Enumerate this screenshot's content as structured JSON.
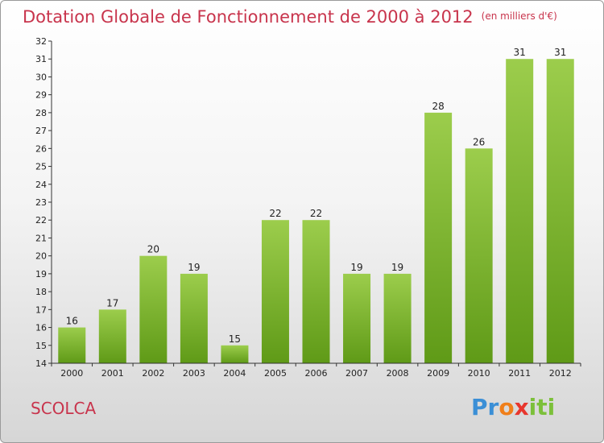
{
  "header": {
    "title": "Dotation Globale de Fonctionnement de 2000 à 2012",
    "unit": "(en milliers d'€)"
  },
  "footer": {
    "commune": "SCOLCA",
    "logo": {
      "letters": [
        "P",
        "r",
        "o",
        "x",
        "i",
        "t",
        "i"
      ],
      "colors": [
        "#3b8fd6",
        "#3b8fd6",
        "#f07f1a",
        "#e8362d",
        "#7cc03a",
        "#7cc03a",
        "#7cc03a"
      ]
    }
  },
  "chart_data": {
    "type": "bar",
    "title": "Dotation Globale de Fonctionnement de 2000 à 2012",
    "subtitle": "(en milliers d'€)",
    "xlabel": "",
    "ylabel": "",
    "categories": [
      "2000",
      "2001",
      "2002",
      "2003",
      "2004",
      "2005",
      "2006",
      "2007",
      "2008",
      "2009",
      "2010",
      "2011",
      "2012"
    ],
    "values": [
      16,
      17,
      20,
      19,
      15,
      22,
      22,
      19,
      19,
      28,
      26,
      31,
      31
    ],
    "value_labels": [
      "16",
      "17",
      "20",
      "19",
      "15",
      "22",
      "22",
      "19",
      "19",
      "28",
      "26",
      "31",
      "31"
    ],
    "ylim": [
      14,
      32
    ],
    "yticks": [
      "14",
      "15",
      "16",
      "17",
      "18",
      "19",
      "20",
      "21",
      "22",
      "23",
      "24",
      "25",
      "26",
      "27",
      "28",
      "29",
      "30",
      "31",
      "32"
    ],
    "grid": false,
    "bar_color_top": "#9ccd4c",
    "bar_color_bottom": "#5f9a17"
  }
}
